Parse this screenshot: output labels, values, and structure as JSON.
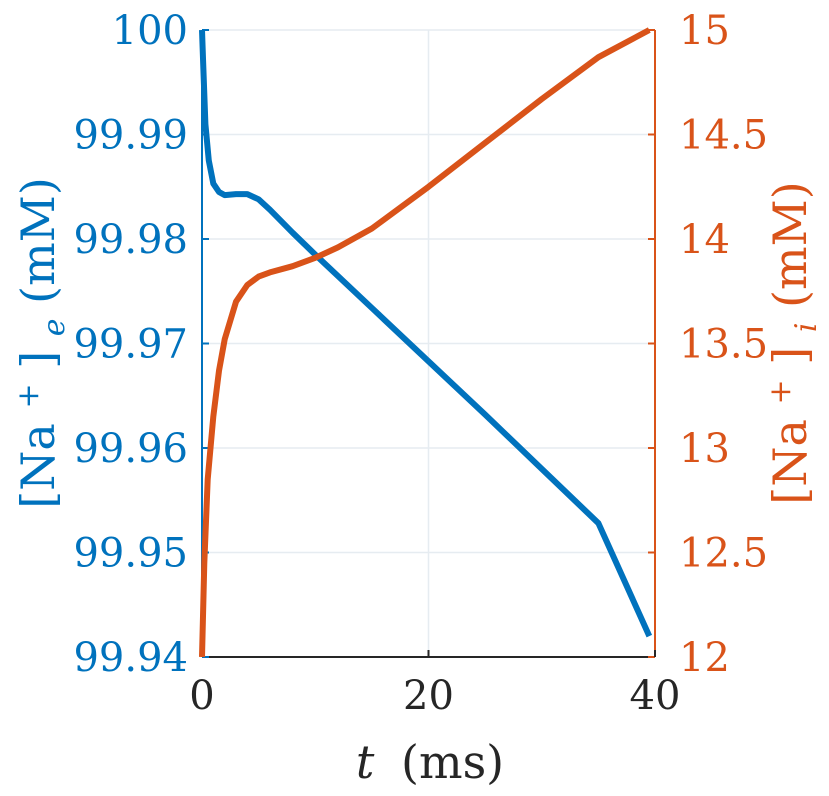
{
  "chart_data": {
    "type": "line",
    "xlabel_var": "t",
    "xlabel_unit": "(ms)",
    "ylabel_left": "[Na+]e (mM)",
    "ylabel_left_parts": {
      "bracket_open": "[Na",
      "sup": "+",
      "bracket_close": "]",
      "sub": "e",
      "unit": " (mM)"
    },
    "ylabel_right": "[Na+]i (mM)",
    "ylabel_right_parts": {
      "bracket_open": "[Na",
      "sup": "+",
      "bracket_close": "]",
      "sub": "i",
      "unit": " (mM)"
    },
    "xlim": [
      0,
      40
    ],
    "ylim_left": [
      99.94,
      100
    ],
    "ylim_right": [
      12,
      15
    ],
    "x_ticks": [
      "0",
      "20",
      "40"
    ],
    "y_left_ticks": [
      "100",
      "99.99",
      "99.98",
      "99.97",
      "99.96",
      "99.95",
      "99.94"
    ],
    "y_right_ticks": [
      "15",
      "14.5",
      "14",
      "13.5",
      "13",
      "12.5",
      "12"
    ],
    "grid": true,
    "colors": {
      "left": "#0072BD",
      "right": "#D95319",
      "grid": "#E6ECF1",
      "axis": "#262626"
    },
    "series": [
      {
        "axis": "left",
        "x": [
          0,
          0.1,
          0.3,
          0.6,
          1.0,
          1.5,
          2.0,
          3.0,
          4.0,
          5.0,
          6.0,
          8.0,
          10.0,
          15.0,
          20.0,
          25.0,
          30.0,
          35.0,
          39.5
        ],
        "y": [
          100,
          99.997,
          99.991,
          99.9875,
          99.9853,
          99.9845,
          99.9842,
          99.9843,
          99.9843,
          99.9838,
          99.9828,
          99.9806,
          99.9785,
          99.9734,
          99.9683,
          99.9632,
          99.958,
          99.9528,
          99.942
        ]
      },
      {
        "axis": "right",
        "x": [
          0,
          0.2,
          0.5,
          1.0,
          1.5,
          2.0,
          3.0,
          4.0,
          5.0,
          6.0,
          8.0,
          10.0,
          12.0,
          15.0,
          20.0,
          25.0,
          30.0,
          35.0,
          39.5
        ],
        "y": [
          12.0,
          12.45,
          12.85,
          13.15,
          13.37,
          13.52,
          13.7,
          13.78,
          13.82,
          13.84,
          13.87,
          13.91,
          13.96,
          14.05,
          14.25,
          14.46,
          14.67,
          14.87,
          15.0
        ]
      }
    ]
  }
}
